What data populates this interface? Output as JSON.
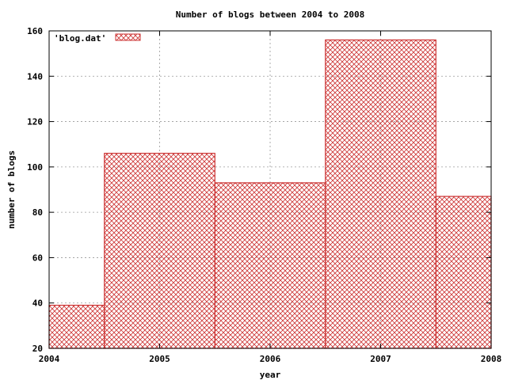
{
  "chart_data": {
    "type": "bar",
    "title": "Number of blogs between 2004 to 2008",
    "xlabel": "year",
    "ylabel": "number of blogs",
    "xlim": [
      2004,
      2008
    ],
    "ylim": [
      20,
      160
    ],
    "xticks": [
      "2004",
      "2005",
      "2006",
      "2007",
      "2008"
    ],
    "yticks": [
      "20",
      "40",
      "60",
      "80",
      "100",
      "120",
      "140",
      "160"
    ],
    "grid": true,
    "legend_position": "top-left",
    "series": [
      {
        "name": "'blog.dat'",
        "color": "#cc3333",
        "fill": "crosshatch",
        "bars": [
          {
            "x": 2004,
            "value": 39
          },
          {
            "x": 2005,
            "value": 106
          },
          {
            "x": 2006,
            "value": 93
          },
          {
            "x": 2007,
            "value": 156
          },
          {
            "x": 2008,
            "value": 87
          }
        ]
      }
    ]
  }
}
